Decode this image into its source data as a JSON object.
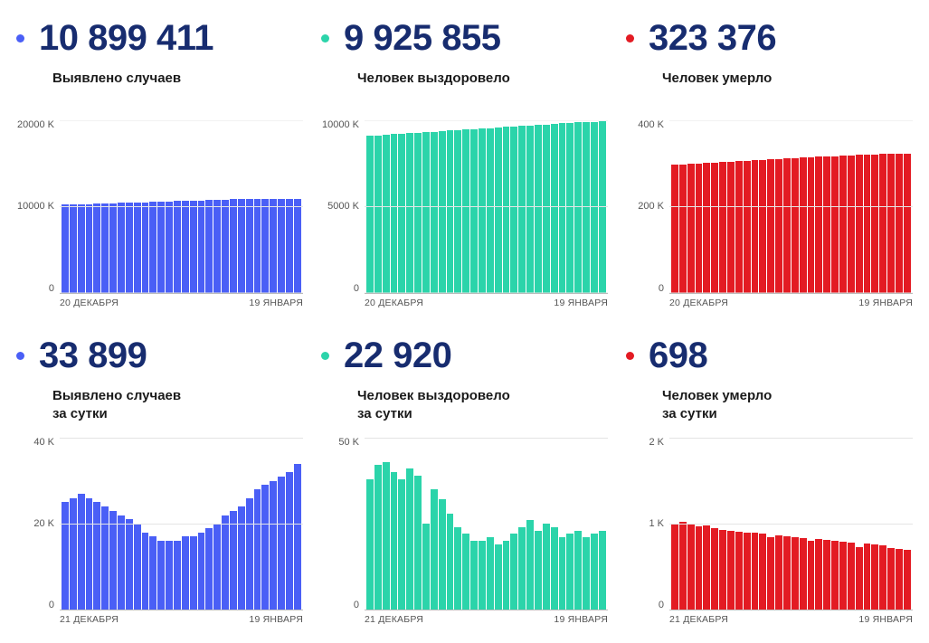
{
  "colors": {
    "number": "#172c6f",
    "text": "#1a1a1a",
    "axis": "#555555",
    "grid": "#e4e4e4",
    "background": "#ffffff"
  },
  "typography": {
    "number_size": 40,
    "number_weight": 800,
    "subtitle_size": 15,
    "subtitle_weight": 600,
    "axis_size": 11
  },
  "cards": [
    {
      "number": "10 899 411",
      "subtitle": "Выявлено случаев",
      "dot_color": "#4a5ff6",
      "bar_color": "#4a5ff6",
      "ylim": [
        0,
        20000
      ],
      "yticks": [
        "20000 K",
        "10000 K",
        "0"
      ],
      "xstart": "20 ДЕКАБРЯ",
      "xend": "19 ЯНВАРЯ",
      "values": [
        10200,
        10230,
        10260,
        10290,
        10320,
        10350,
        10380,
        10410,
        10440,
        10470,
        10500,
        10530,
        10560,
        10590,
        10620,
        10650,
        10680,
        10710,
        10740,
        10770,
        10800,
        10820,
        10840,
        10860,
        10870,
        10880,
        10885,
        10890,
        10895,
        10899
      ]
    },
    {
      "number": "9 925 855",
      "subtitle": "Человек выздоровело",
      "dot_color": "#2bd4aa",
      "bar_color": "#2bd4aa",
      "ylim": [
        0,
        10000
      ],
      "yticks": [
        "10000 K",
        "5000 K",
        "0"
      ],
      "xstart": "20 ДЕКАБРЯ",
      "xend": "19 ЯНВАРЯ",
      "values": [
        9100,
        9130,
        9160,
        9190,
        9220,
        9250,
        9280,
        9310,
        9340,
        9370,
        9400,
        9430,
        9460,
        9490,
        9520,
        9550,
        9580,
        9610,
        9640,
        9670,
        9700,
        9730,
        9760,
        9790,
        9820,
        9850,
        9870,
        9890,
        9910,
        9925
      ]
    },
    {
      "number": "323 376",
      "subtitle": "Человек умерло",
      "dot_color": "#e31b23",
      "bar_color": "#e31b23",
      "ylim": [
        0,
        400
      ],
      "yticks": [
        "400 K",
        "200 K",
        "0"
      ],
      "xstart": "20 ДЕКАБРЯ",
      "xend": "19 ЯНВАРЯ",
      "values": [
        297,
        298,
        299,
        300,
        301,
        302,
        303,
        304,
        305,
        306,
        307,
        308,
        309,
        310,
        311,
        312,
        313,
        314,
        315,
        316,
        317,
        318,
        319,
        320,
        321,
        321,
        322,
        322,
        323,
        323
      ]
    },
    {
      "number": "33 899",
      "subtitle": "Выявлено случаев\nза сутки",
      "dot_color": "#4a5ff6",
      "bar_color": "#4a5ff6",
      "ylim": [
        0,
        40
      ],
      "yticks": [
        "40 K",
        "20 K",
        "0"
      ],
      "xstart": "21 ДЕКАБРЯ",
      "xend": "19 ЯНВАРЯ",
      "values": [
        25,
        26,
        27,
        26,
        25,
        24,
        23,
        22,
        21,
        20,
        18,
        17,
        16,
        16,
        16,
        17,
        17,
        18,
        19,
        20,
        22,
        23,
        24,
        26,
        28,
        29,
        30,
        31,
        32,
        34
      ]
    },
    {
      "number": "22 920",
      "subtitle": "Человек выздоровело\nза сутки",
      "dot_color": "#2bd4aa",
      "bar_color": "#2bd4aa",
      "ylim": [
        0,
        50
      ],
      "yticks": [
        "50 K",
        "0"
      ],
      "xstart": "21 ДЕКАБРЯ",
      "xend": "19 ЯНВАРЯ",
      "values": [
        38,
        42,
        43,
        40,
        38,
        41,
        39,
        25,
        35,
        32,
        28,
        24,
        22,
        20,
        20,
        21,
        19,
        20,
        22,
        24,
        26,
        23,
        25,
        24,
        21,
        22,
        23,
        21,
        22,
        23
      ]
    },
    {
      "number": "698",
      "subtitle": "Человек умерло\nза сутки",
      "dot_color": "#e31b23",
      "bar_color": "#e31b23",
      "ylim": [
        0,
        2
      ],
      "yticks": [
        "2 K",
        "1 K",
        "0"
      ],
      "xstart": "21 ДЕКАБРЯ",
      "xend": "19 ЯНВАРЯ",
      "values": [
        1.0,
        1.02,
        0.99,
        0.97,
        0.98,
        0.95,
        0.93,
        0.92,
        0.91,
        0.9,
        0.89,
        0.88,
        0.84,
        0.86,
        0.85,
        0.84,
        0.83,
        0.8,
        0.82,
        0.81,
        0.8,
        0.79,
        0.78,
        0.73,
        0.77,
        0.76,
        0.75,
        0.72,
        0.71,
        0.7
      ]
    }
  ]
}
